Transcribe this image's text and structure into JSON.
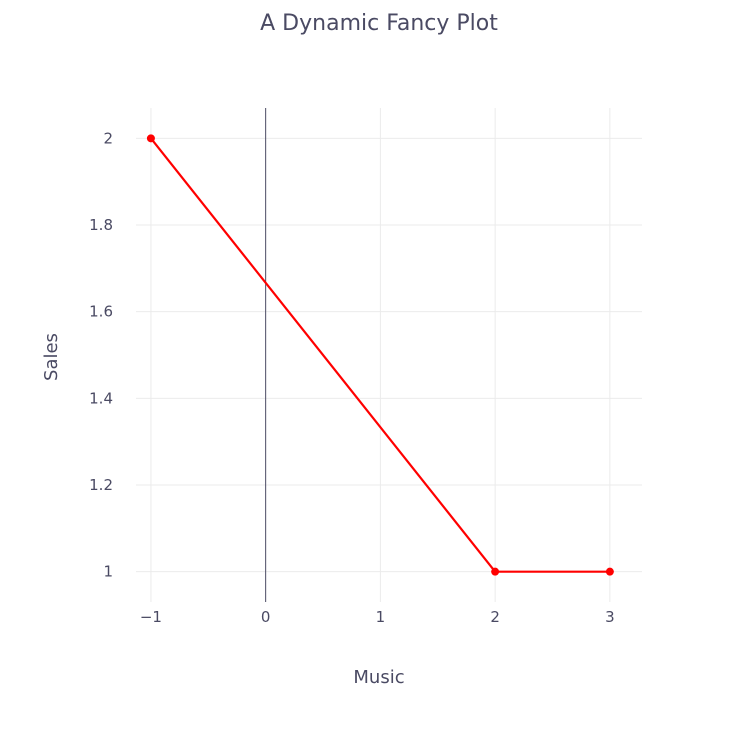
{
  "chart_data": {
    "type": "line",
    "title": "A Dynamic Fancy Plot",
    "xlabel": "Music",
    "ylabel": "Sales",
    "xlim": [
      -1.13,
      3.28
    ],
    "ylim": [
      0.93,
      2.07
    ],
    "xticks": [
      -1,
      0,
      1,
      2,
      3
    ],
    "xtick_labels": [
      "−1",
      "0",
      "1",
      "2",
      "3"
    ],
    "yticks": [
      1,
      1.2,
      1.4,
      1.6,
      1.8,
      2
    ],
    "ytick_labels": [
      "1",
      "1.2",
      "1.4",
      "1.6",
      "1.8",
      "2"
    ],
    "grid": true,
    "zero_line": "x",
    "series": [
      {
        "x": [
          -1,
          2,
          3
        ],
        "y": [
          2,
          1,
          1
        ],
        "color": "#ff0000",
        "mode": "lines+markers"
      }
    ]
  },
  "colors": {
    "text": "#4a4a63",
    "grid": "#ebebeb",
    "zero_line": "#4a4a63",
    "background": "#ffffff"
  }
}
